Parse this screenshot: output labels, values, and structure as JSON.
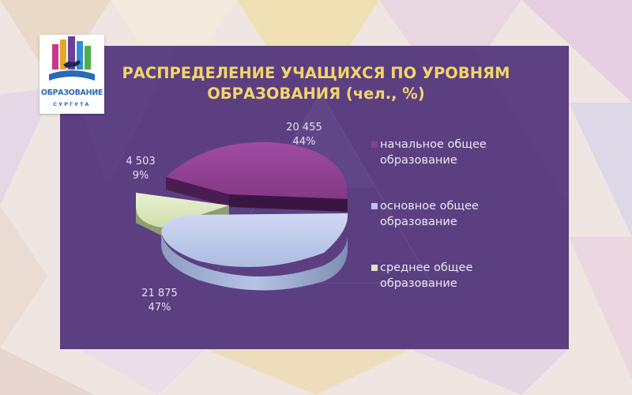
{
  "slide": {
    "background_color": "#efe6e2",
    "panel_color": "#5b3f81",
    "logo": {
      "title": "ОБРАЗОВАНИЕ",
      "subtitle": "СУРГУТА",
      "icon": "city-skyline-and-book-icon"
    }
  },
  "chart_data": {
    "type": "pie",
    "title": [
      "РАСПРЕДЕЛЕНИЕ УЧАЩИХСЯ ПО УРОВНЯМ",
      "ОБРАЗОВАНИЯ (чел., %)"
    ],
    "legend_position": "right",
    "slices": [
      {
        "name": [
          "начальное общее",
          "образование"
        ],
        "value": 20455,
        "value_label": "20 455",
        "percent": 44,
        "percent_label": "44%",
        "color": "#8c3f8e"
      },
      {
        "name": [
          "основное общее",
          "образование"
        ],
        "value": 21875,
        "value_label": "21 875",
        "percent": 47,
        "percent_label": "47%",
        "color": "#b7c4e6"
      },
      {
        "name": [
          "среднее общее",
          "образование"
        ],
        "value": 4503,
        "value_label": "4 503",
        "percent": 9,
        "percent_label": "9%",
        "color": "#d9e6bf"
      }
    ]
  }
}
